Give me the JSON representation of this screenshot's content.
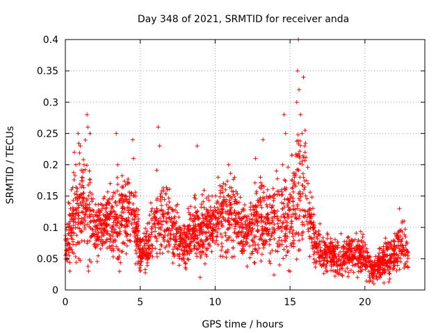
{
  "chart_data": {
    "type": "scatter",
    "title": "Day 348 of 2021, SRMTID for receiver anda",
    "xlabel": "GPS time / hours",
    "ylabel": "SRMTID / TECUs",
    "xlim": [
      0,
      24
    ],
    "ylim": [
      0,
      0.4
    ],
    "grid": true,
    "marker": "+",
    "color": "#ff0000",
    "xticks": [
      {
        "value": 0,
        "label": "0"
      },
      {
        "value": 5,
        "label": "5"
      },
      {
        "value": 10,
        "label": "10"
      },
      {
        "value": 15,
        "label": "15"
      },
      {
        "value": 20,
        "label": "20"
      }
    ],
    "yticks": [
      {
        "value": 0,
        "label": "0"
      },
      {
        "value": 0.05,
        "label": "0.05"
      },
      {
        "value": 0.1,
        "label": "0.1"
      },
      {
        "value": 0.15,
        "label": "0.15"
      },
      {
        "value": 0.2,
        "label": "0.2"
      },
      {
        "value": 0.25,
        "label": "0.25"
      },
      {
        "value": 0.3,
        "label": "0.3"
      },
      {
        "value": 0.35,
        "label": "0.35"
      },
      {
        "value": 0.4,
        "label": "0.4"
      }
    ],
    "envelope": {
      "description": "approximate center and spread of the dense point cloud, in data units",
      "x": [
        0.0,
        0.5,
        1.0,
        1.5,
        2.0,
        2.5,
        3.0,
        3.5,
        4.0,
        4.5,
        5.0,
        5.5,
        6.0,
        6.5,
        7.0,
        7.5,
        8.0,
        8.5,
        9.0,
        9.5,
        10.0,
        10.5,
        11.0,
        11.5,
        12.0,
        12.5,
        13.0,
        13.5,
        14.0,
        14.5,
        15.0,
        15.5,
        16.0,
        16.5,
        17.0,
        17.5,
        18.0,
        18.5,
        19.0,
        19.5,
        20.0,
        20.5,
        21.0,
        21.5,
        22.0,
        22.5,
        22.9
      ],
      "center": [
        0.07,
        0.11,
        0.13,
        0.13,
        0.1,
        0.1,
        0.11,
        0.11,
        0.12,
        0.13,
        0.06,
        0.07,
        0.11,
        0.12,
        0.1,
        0.08,
        0.07,
        0.1,
        0.09,
        0.1,
        0.11,
        0.12,
        0.12,
        0.11,
        0.09,
        0.1,
        0.12,
        0.11,
        0.1,
        0.12,
        0.11,
        0.17,
        0.16,
        0.09,
        0.06,
        0.06,
        0.05,
        0.05,
        0.06,
        0.06,
        0.05,
        0.03,
        0.04,
        0.05,
        0.06,
        0.07,
        0.05
      ],
      "spread": [
        0.02,
        0.04,
        0.05,
        0.05,
        0.03,
        0.03,
        0.04,
        0.04,
        0.04,
        0.04,
        0.02,
        0.02,
        0.04,
        0.04,
        0.03,
        0.03,
        0.02,
        0.03,
        0.03,
        0.03,
        0.03,
        0.04,
        0.04,
        0.03,
        0.03,
        0.03,
        0.04,
        0.04,
        0.04,
        0.05,
        0.05,
        0.08,
        0.06,
        0.03,
        0.02,
        0.02,
        0.02,
        0.02,
        0.02,
        0.02,
        0.02,
        0.01,
        0.02,
        0.02,
        0.02,
        0.03,
        0.02
      ]
    },
    "points": [
      [
        0.0,
        0.08
      ],
      [
        0.1,
        0.05
      ],
      [
        0.2,
        0.09
      ],
      [
        0.3,
        0.03
      ],
      [
        0.35,
        0.13
      ],
      [
        0.4,
        0.16
      ],
      [
        0.6,
        0.22
      ],
      [
        0.7,
        0.2
      ],
      [
        0.85,
        0.25
      ],
      [
        0.9,
        0.05
      ],
      [
        1.0,
        0.23
      ],
      [
        1.1,
        0.18
      ],
      [
        1.3,
        0.12
      ],
      [
        1.45,
        0.28
      ],
      [
        1.5,
        0.26
      ],
      [
        1.55,
        0.03
      ],
      [
        1.6,
        0.19
      ],
      [
        1.65,
        0.25
      ],
      [
        2.0,
        0.12
      ],
      [
        2.2,
        0.08
      ],
      [
        2.5,
        0.09
      ],
      [
        2.8,
        0.14
      ],
      [
        3.0,
        0.17
      ],
      [
        3.4,
        0.25
      ],
      [
        3.5,
        0.2
      ],
      [
        3.6,
        0.09
      ],
      [
        3.8,
        0.15
      ],
      [
        4.0,
        0.1
      ],
      [
        4.3,
        0.15
      ],
      [
        4.5,
        0.24
      ],
      [
        4.55,
        0.21
      ],
      [
        4.7,
        0.15
      ],
      [
        5.0,
        0.03
      ],
      [
        5.2,
        0.06
      ],
      [
        5.4,
        0.09
      ],
      [
        5.8,
        0.13
      ],
      [
        6.2,
        0.26
      ],
      [
        6.3,
        0.23
      ],
      [
        6.5,
        0.12
      ],
      [
        6.8,
        0.16
      ],
      [
        7.0,
        0.09
      ],
      [
        7.3,
        0.08
      ],
      [
        7.6,
        0.07
      ],
      [
        7.9,
        0.05
      ],
      [
        8.2,
        0.13
      ],
      [
        8.5,
        0.12
      ],
      [
        8.8,
        0.23
      ],
      [
        9.0,
        0.02
      ],
      [
        9.2,
        0.06
      ],
      [
        9.5,
        0.1
      ],
      [
        9.8,
        0.15
      ],
      [
        10.2,
        0.18
      ],
      [
        10.5,
        0.14
      ],
      [
        10.9,
        0.2
      ],
      [
        11.3,
        0.18
      ],
      [
        11.6,
        0.14
      ],
      [
        12.0,
        0.1
      ],
      [
        12.3,
        0.07
      ],
      [
        12.7,
        0.21
      ],
      [
        12.9,
        0.14
      ],
      [
        13.2,
        0.24
      ],
      [
        13.5,
        0.16
      ],
      [
        13.8,
        0.09
      ],
      [
        14.1,
        0.19
      ],
      [
        14.3,
        0.04
      ],
      [
        14.5,
        0.2
      ],
      [
        14.6,
        0.28
      ],
      [
        14.7,
        0.25
      ],
      [
        14.9,
        0.12
      ],
      [
        15.1,
        0.07
      ],
      [
        15.3,
        0.18
      ],
      [
        15.45,
        0.3
      ],
      [
        15.5,
        0.35
      ],
      [
        15.55,
        0.4
      ],
      [
        15.6,
        0.32
      ],
      [
        15.7,
        0.28
      ],
      [
        15.8,
        0.25
      ],
      [
        15.9,
        0.34
      ],
      [
        16.0,
        0.22
      ],
      [
        16.2,
        0.17
      ],
      [
        16.5,
        0.1
      ],
      [
        16.8,
        0.06
      ],
      [
        17.2,
        0.04
      ],
      [
        17.6,
        0.07
      ],
      [
        18.0,
        0.03
      ],
      [
        18.4,
        0.09
      ],
      [
        18.7,
        0.05
      ],
      [
        19.1,
        0.08
      ],
      [
        19.5,
        0.02
      ],
      [
        19.9,
        0.06
      ],
      [
        20.3,
        0.02
      ],
      [
        20.6,
        0.01
      ],
      [
        20.9,
        0.03
      ],
      [
        21.3,
        0.06
      ],
      [
        21.7,
        0.05
      ],
      [
        22.0,
        0.09
      ],
      [
        22.3,
        0.13
      ],
      [
        22.5,
        0.11
      ],
      [
        22.7,
        0.04
      ],
      [
        22.85,
        0.06
      ]
    ]
  }
}
